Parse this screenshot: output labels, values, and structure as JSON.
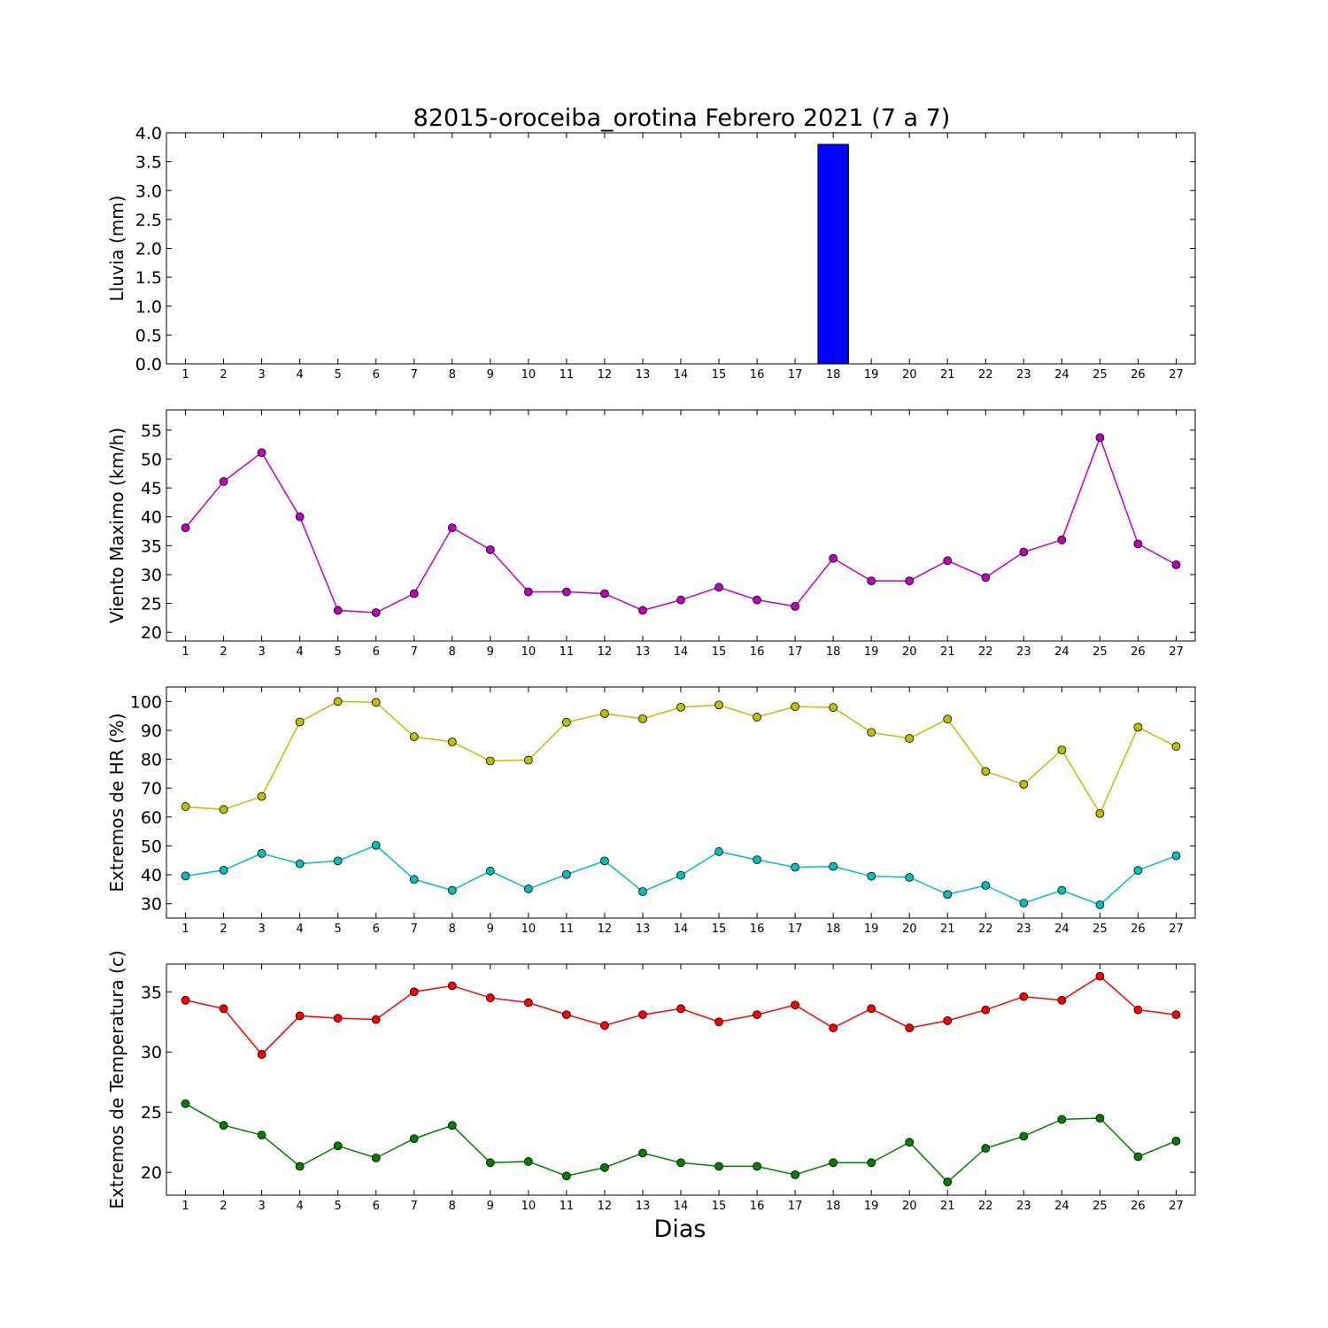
{
  "figure": {
    "title": "82015-oroceiba_orotina Febrero 2021  (7 a 7)",
    "xlabel": "Dias"
  },
  "chart_data": [
    {
      "type": "bar",
      "ylabel": "Lluvia (mm)",
      "ylim": [
        0,
        4.0
      ],
      "yticks": [
        0.0,
        0.5,
        1.0,
        1.5,
        2.0,
        2.5,
        3.0,
        3.5,
        4.0
      ],
      "ytick_decimals": 1,
      "x": [
        1,
        2,
        3,
        4,
        5,
        6,
        7,
        8,
        9,
        10,
        11,
        12,
        13,
        14,
        15,
        16,
        17,
        18,
        19,
        20,
        21,
        22,
        23,
        24,
        25,
        26,
        27
      ],
      "values": [
        0,
        0,
        0,
        0,
        0,
        0,
        0,
        0,
        0,
        0,
        0,
        0,
        0,
        0,
        0,
        0,
        0,
        3.8,
        0,
        0,
        0,
        0,
        0,
        0,
        0,
        0,
        0
      ],
      "color": "#0000ff",
      "grid": false
    },
    {
      "type": "line",
      "ylabel": "Viento Maximo (km/h)",
      "ylim": [
        18.5,
        58.5
      ],
      "yticks": [
        20,
        25,
        30,
        35,
        40,
        45,
        50,
        55
      ],
      "ytick_decimals": 0,
      "x": [
        1,
        2,
        3,
        4,
        5,
        6,
        7,
        8,
        9,
        10,
        11,
        12,
        13,
        14,
        15,
        16,
        17,
        18,
        19,
        20,
        21,
        22,
        23,
        24,
        25,
        26,
        27
      ],
      "series": [
        {
          "color": "#bf00bf",
          "values": [
            38.1,
            46.1,
            51.1,
            40.0,
            23.8,
            23.4,
            26.7,
            38.1,
            34.3,
            27.0,
            27.0,
            26.7,
            23.8,
            25.6,
            27.8,
            25.6,
            24.5,
            32.8,
            28.9,
            28.9,
            32.4,
            29.5,
            33.9,
            36.0,
            53.7,
            35.3,
            31.7
          ]
        }
      ],
      "grid": false
    },
    {
      "type": "line",
      "ylabel": "Extremos de HR (%)",
      "ylim": [
        25,
        105
      ],
      "yticks": [
        30,
        40,
        50,
        60,
        70,
        80,
        90,
        100
      ],
      "ytick_decimals": 0,
      "x": [
        1,
        2,
        3,
        4,
        5,
        6,
        7,
        8,
        9,
        10,
        11,
        12,
        13,
        14,
        15,
        16,
        17,
        18,
        19,
        20,
        21,
        22,
        23,
        24,
        25,
        26,
        27
      ],
      "series": [
        {
          "color": "#bfbf00",
          "values": [
            63.6,
            62.6,
            67.1,
            92.9,
            100.0,
            99.7,
            87.8,
            86.0,
            79.4,
            79.7,
            92.8,
            95.8,
            94.0,
            98.0,
            98.8,
            94.6,
            98.2,
            97.9,
            89.3,
            87.2,
            93.9,
            75.8,
            71.3,
            83.2,
            61.2,
            91.1,
            84.4
          ]
        },
        {
          "color": "#00bfbf",
          "values": [
            39.6,
            41.6,
            47.4,
            43.8,
            44.8,
            50.2,
            38.4,
            34.6,
            41.3,
            35.1,
            40.1,
            44.8,
            34.2,
            39.8,
            48.0,
            45.2,
            42.6,
            42.9,
            39.5,
            39.1,
            33.2,
            36.3,
            30.2,
            34.6,
            29.6,
            41.5,
            46.6
          ]
        }
      ],
      "grid": false
    },
    {
      "type": "line",
      "ylabel": "Extremos de Temperatura (c)",
      "ylim": [
        18.1,
        37.3
      ],
      "yticks": [
        20,
        25,
        30,
        35
      ],
      "ytick_decimals": 0,
      "x": [
        1,
        2,
        3,
        4,
        5,
        6,
        7,
        8,
        9,
        10,
        11,
        12,
        13,
        14,
        15,
        16,
        17,
        18,
        19,
        20,
        21,
        22,
        23,
        24,
        25,
        26,
        27
      ],
      "series": [
        {
          "color": "#ff0000",
          "values": [
            34.3,
            33.6,
            29.8,
            33.0,
            32.8,
            32.7,
            35.0,
            35.5,
            34.5,
            34.1,
            33.1,
            32.2,
            33.1,
            33.6,
            32.5,
            33.1,
            33.9,
            32.0,
            33.6,
            32.0,
            32.6,
            33.5,
            34.6,
            34.3,
            36.3,
            33.5,
            33.1
          ]
        },
        {
          "color": "#007f00",
          "values": [
            25.7,
            23.9,
            23.1,
            20.5,
            22.2,
            21.2,
            22.8,
            23.9,
            20.8,
            20.9,
            19.7,
            20.4,
            21.6,
            20.8,
            20.5,
            20.5,
            19.8,
            20.8,
            20.8,
            22.5,
            19.2,
            22.0,
            23.0,
            24.4,
            24.5,
            21.3,
            22.6
          ]
        }
      ],
      "grid": false
    }
  ]
}
